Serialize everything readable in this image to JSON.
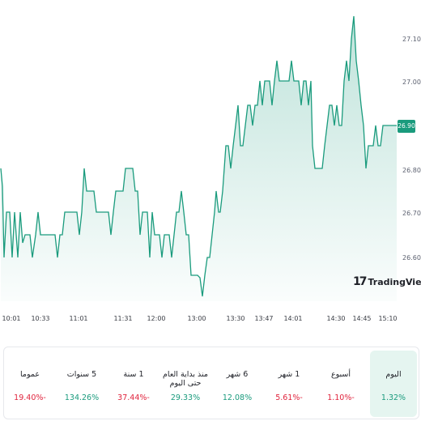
{
  "chart": {
    "y_ticks": [
      "27.10",
      "27.00",
      "26.80",
      "26.70",
      "26.60"
    ],
    "x_ticks": [
      "10:01",
      "10:33",
      "11:01",
      "11:31",
      "12:00",
      "13:00",
      "13:30",
      "13:47",
      "14:01",
      "14:30",
      "14:45",
      "15:10"
    ],
    "current_price": "26.90",
    "line_color": "#1a9b7d",
    "logo_mark": "17",
    "logo_text": "TradingView"
  },
  "performance": [
    {
      "label": "عموما",
      "value": "19.40%-",
      "dir": "neg"
    },
    {
      "label": "5 سنوات",
      "value": "134.26%",
      "dir": "pos"
    },
    {
      "label": "1 سنة",
      "value": "37.44%-",
      "dir": "neg"
    },
    {
      "label": "منذ بداية العام حتى اليوم",
      "value": "29.33%",
      "dir": "pos"
    },
    {
      "label": "6 شهر",
      "value": "12.08%",
      "dir": "pos"
    },
    {
      "label": "1 شهر",
      "value": "5.61%-",
      "dir": "neg"
    },
    {
      "label": "أسبوع",
      "value": "1.10%-",
      "dir": "neg"
    },
    {
      "label": "اليوم",
      "value": "1.32%",
      "dir": "pos",
      "active": true
    }
  ]
}
